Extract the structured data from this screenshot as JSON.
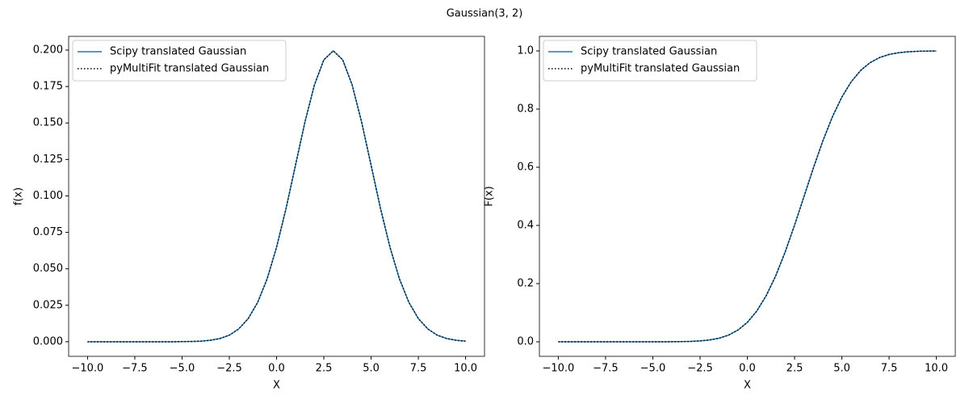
{
  "title": "Gaussian(3, 2)",
  "chart_data": [
    {
      "type": "line",
      "xlabel": "X",
      "ylabel": "f(x)",
      "legend": "upper left",
      "x": [
        -10,
        -9.5,
        -9,
        -8.5,
        -8,
        -7.5,
        -7,
        -6.5,
        -6,
        -5.5,
        -5,
        -4.5,
        -4,
        -3.5,
        -3,
        -2.5,
        -2,
        -1.5,
        -1,
        -0.5,
        0,
        0.5,
        1,
        1.5,
        2,
        2.5,
        3,
        3.5,
        4,
        4.5,
        5,
        5.5,
        6,
        6.5,
        7,
        7.5,
        8,
        8.5,
        9,
        9.5,
        10
      ],
      "series": [
        {
          "name": "Scipy translated Gaussian",
          "color": "#1f77b4",
          "style": "solid",
          "values": [
            0,
            0,
            0,
            0,
            0,
            0,
            0,
            0,
            0,
            0,
            0.0001,
            0.0002,
            0.0004,
            0.001,
            0.0022,
            0.0045,
            0.0088,
            0.0159,
            0.027,
            0.0431,
            0.0648,
            0.0913,
            0.121,
            0.1506,
            0.176,
            0.1933,
            0.1995,
            0.1933,
            0.176,
            0.1506,
            0.121,
            0.0913,
            0.0648,
            0.0431,
            0.027,
            0.0159,
            0.0088,
            0.0045,
            0.0022,
            0.001,
            0.0004
          ]
        },
        {
          "name": "pyMultiFit translated Gaussian",
          "color": "#000000",
          "style": "dotted",
          "values": [
            0,
            0,
            0,
            0,
            0,
            0,
            0,
            0,
            0,
            0,
            0.0001,
            0.0002,
            0.0004,
            0.001,
            0.0022,
            0.0045,
            0.0088,
            0.0159,
            0.027,
            0.0431,
            0.0648,
            0.0913,
            0.121,
            0.1506,
            0.176,
            0.1933,
            0.1995,
            0.1933,
            0.176,
            0.1506,
            0.121,
            0.0913,
            0.0648,
            0.0431,
            0.027,
            0.0159,
            0.0088,
            0.0045,
            0.0022,
            0.001,
            0.0004
          ]
        }
      ],
      "xlim": [
        -11,
        11
      ],
      "ylim": [
        -0.01,
        0.2094
      ],
      "xticks": [
        {
          "value": -10,
          "label": "−10.0"
        },
        {
          "value": -7.5,
          "label": "−7.5"
        },
        {
          "value": -5,
          "label": "−5.0"
        },
        {
          "value": -2.5,
          "label": "−2.5"
        },
        {
          "value": 0,
          "label": "0.0"
        },
        2.5,
        {
          "value": 5,
          "label": "5.0"
        },
        7.5,
        {
          "value": 10,
          "label": "10.0"
        }
      ],
      "yticks": [
        {
          "value": 0,
          "label": "0.000"
        },
        0.025,
        {
          "value": 0.05,
          "label": "0.050"
        },
        0.075,
        {
          "value": 0.1,
          "label": "0.100"
        },
        0.125,
        {
          "value": 0.15,
          "label": "0.150"
        },
        0.175,
        {
          "value": 0.2,
          "label": "0.200"
        }
      ]
    },
    {
      "type": "line",
      "xlabel": "X",
      "ylabel": "F(x)",
      "legend": "upper left",
      "x": [
        -10,
        -9.5,
        -9,
        -8.5,
        -8,
        -7.5,
        -7,
        -6.5,
        -6,
        -5.5,
        -5,
        -4.5,
        -4,
        -3.5,
        -3,
        -2.5,
        -2,
        -1.5,
        -1,
        -0.5,
        0,
        0.5,
        1,
        1.5,
        2,
        2.5,
        3,
        3.5,
        4,
        4.5,
        5,
        5.5,
        6,
        6.5,
        7,
        7.5,
        8,
        8.5,
        9,
        9.5,
        10
      ],
      "series": [
        {
          "name": "Scipy translated Gaussian",
          "color": "#1f77b4",
          "style": "solid",
          "values": [
            0,
            0,
            0,
            0,
            0,
            0,
            0,
            0,
            0,
            0,
            0,
            0.0001,
            0.0002,
            0.0006,
            0.0013,
            0.003,
            0.0062,
            0.0122,
            0.0228,
            0.0401,
            0.0668,
            0.1056,
            0.1587,
            0.2266,
            0.3085,
            0.4013,
            0.5,
            0.5987,
            0.6915,
            0.7734,
            0.8413,
            0.8944,
            0.9332,
            0.9599,
            0.9772,
            0.9878,
            0.9938,
            0.997,
            0.9987,
            0.9994,
            0.9998
          ]
        },
        {
          "name": "pyMultiFit translated Gaussian",
          "color": "#000000",
          "style": "dotted",
          "values": [
            0,
            0,
            0,
            0,
            0,
            0,
            0,
            0,
            0,
            0,
            0,
            0.0001,
            0.0002,
            0.0006,
            0.0013,
            0.003,
            0.0062,
            0.0122,
            0.0228,
            0.0401,
            0.0668,
            0.1056,
            0.1587,
            0.2266,
            0.3085,
            0.4013,
            0.5,
            0.5987,
            0.6915,
            0.7734,
            0.8413,
            0.8944,
            0.9332,
            0.9599,
            0.9772,
            0.9878,
            0.9938,
            0.997,
            0.9987,
            0.9994,
            0.9998
          ]
        }
      ],
      "xlim": [
        -11,
        11
      ],
      "ylim": [
        -0.05,
        1.05
      ],
      "xticks": [
        {
          "value": -10,
          "label": "−10.0"
        },
        {
          "value": -7.5,
          "label": "−7.5"
        },
        {
          "value": -5,
          "label": "−5.0"
        },
        {
          "value": -2.5,
          "label": "−2.5"
        },
        {
          "value": 0,
          "label": "0.0"
        },
        2.5,
        {
          "value": 5,
          "label": "5.0"
        },
        7.5,
        {
          "value": 10,
          "label": "10.0"
        }
      ],
      "yticks": [
        {
          "value": 0,
          "label": "0.0"
        },
        0.2,
        0.4,
        0.6,
        0.8,
        {
          "value": 1,
          "label": "1.0"
        }
      ]
    }
  ]
}
